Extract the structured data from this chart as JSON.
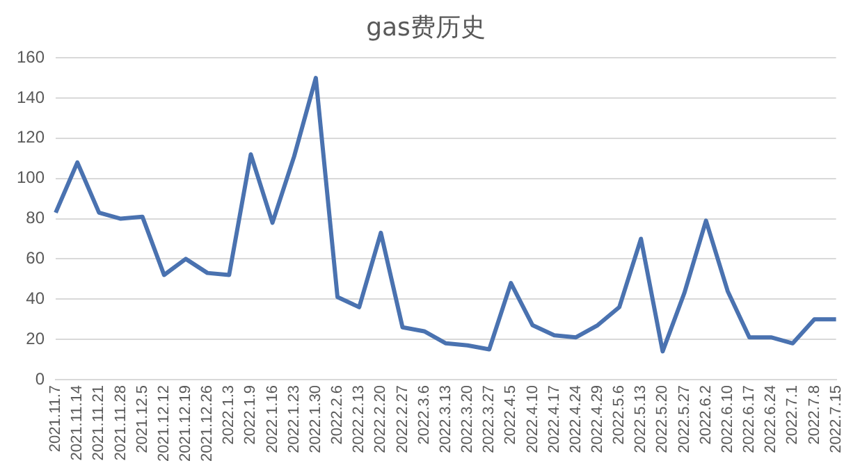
{
  "chart_data": {
    "type": "line",
    "title": "gas费历史",
    "categories": [
      "2021.11.7",
      "2021.11.14",
      "2021.11.21",
      "2021.11.28",
      "2021.12.5",
      "2021.12.12",
      "2021.12.19",
      "2021.12.26",
      "2022.1.3",
      "2022.1.9",
      "2022.1.16",
      "2022.1.23",
      "2022.1.30",
      "2022.2.6",
      "2022.2.13",
      "2022.2.20",
      "2022.2.27",
      "2022.3.6",
      "2022.3.13",
      "2022.3.20",
      "2022.3.27",
      "2022.4.5",
      "2022.4.10",
      "2022.4.17",
      "2022.4.24",
      "2022.4.29",
      "2022.5.6",
      "2022.5.13",
      "2022.5.20",
      "2022.5.27",
      "2022.6.2",
      "2022.6.10",
      "2022.6.17",
      "2022.6.24",
      "2022.7.1",
      "2022.7.8",
      "2022.7.15"
    ],
    "values": [
      83,
      108,
      83,
      80,
      81,
      52,
      60,
      53,
      52,
      112,
      78,
      111,
      150,
      41,
      36,
      73,
      26,
      24,
      18,
      17,
      15,
      48,
      27,
      22,
      21,
      27,
      36,
      70,
      14,
      43,
      79,
      44,
      21,
      21,
      18,
      30,
      30
    ],
    "color": "#4a72b0",
    "ylim": [
      0,
      160
    ],
    "yticks": [
      0,
      20,
      40,
      60,
      80,
      100,
      120,
      140,
      160
    ],
    "grid": "y",
    "legend": false,
    "marker": "none",
    "line_style": "solid"
  }
}
